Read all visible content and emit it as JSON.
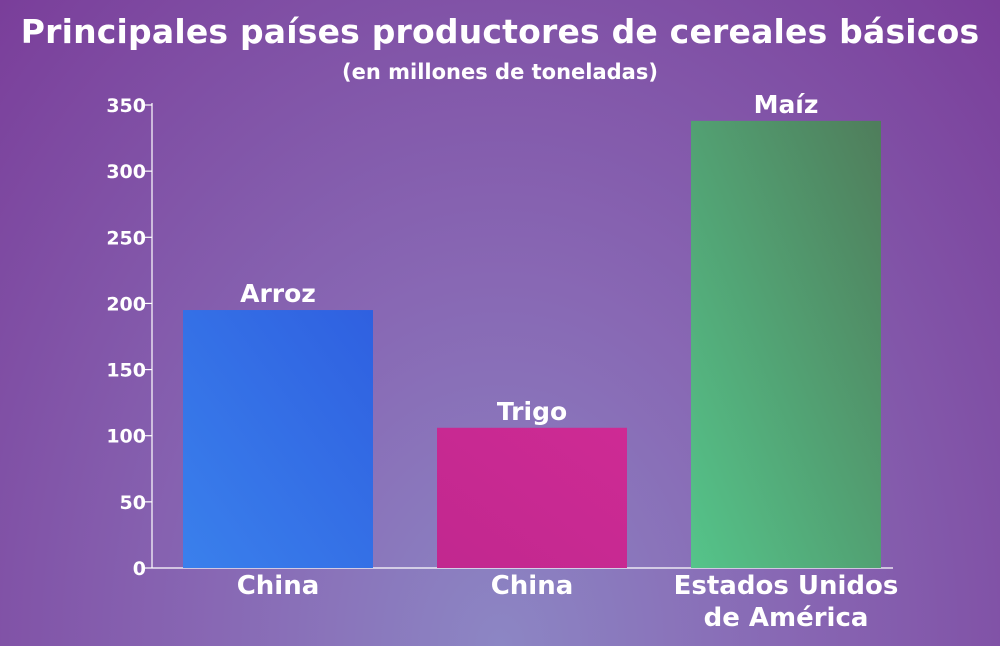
{
  "chart_data": {
    "type": "bar",
    "title": "Principales países productores de cereales básicos",
    "subtitle": "(en millones de toneladas)",
    "categories": [
      [
        "China"
      ],
      [
        "China"
      ],
      [
        "Estados Unidos",
        "de América"
      ]
    ],
    "values": [
      195,
      106,
      338
    ],
    "bar_labels": [
      "Arroz",
      "Trigo",
      "Maíz"
    ],
    "colors": [
      [
        "#3a80ec",
        "#2f60e0"
      ],
      [
        "#c1288f",
        "#ce2a94"
      ],
      [
        "#55c48a",
        "#4f7d5b"
      ]
    ],
    "ylim": [
      0,
      350
    ],
    "yticks": [
      0,
      50,
      100,
      150,
      200,
      250,
      300,
      350
    ],
    "grid": false,
    "xlabel": "",
    "ylabel": ""
  }
}
